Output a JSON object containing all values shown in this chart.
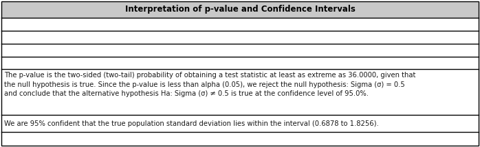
{
  "title": "Interpretation of p-value and Confidence Intervals",
  "title_bg": "#c8c8c8",
  "title_fontsize": 8.5,
  "row5_text": "The p-value is the two-sided (two-tail) probability of obtaining a test statistic at least as extreme as 36.0000, given that\nthe null hypothesis is true. Since the p-value is less than alpha (0.05), we reject the null hypothesis: Sigma (σ) = 0.5\nand conclude that the alternative hypothesis Ha: Sigma (σ) ≠ 0.5 is true at the confidence level of 95.0%.",
  "row6_text": "We are 95% confident that the true population standard deviation lies within the interval (0.6878 to 1.8256).",
  "text_color": "#1a1a1a",
  "border_color": "#000000",
  "bg_color": "#ffffff",
  "fontsize": 7.2,
  "font_family": "DejaVu Sans"
}
